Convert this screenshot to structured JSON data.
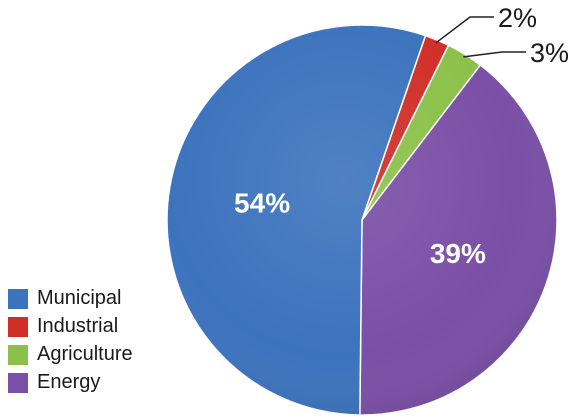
{
  "chart_data": {
    "type": "pie",
    "title": "",
    "categories": [
      "Municipal",
      "Industrial",
      "Agriculture",
      "Energy"
    ],
    "values": [
      54,
      2,
      3,
      39
    ],
    "value_labels": [
      "54%",
      "2%",
      "3%",
      "39%"
    ],
    "colors": [
      "#3c73bd",
      "#d12e28",
      "#8bc14a",
      "#7a4fa6"
    ],
    "legend": {
      "placement": "bottom-left",
      "entries": [
        {
          "label": "Municipal",
          "color": "#3c73bd"
        },
        {
          "label": "Industrial",
          "color": "#d12e28"
        },
        {
          "label": "Agriculture",
          "color": "#8bc14a"
        },
        {
          "label": "Energy",
          "color": "#7a4fa6"
        }
      ]
    }
  }
}
